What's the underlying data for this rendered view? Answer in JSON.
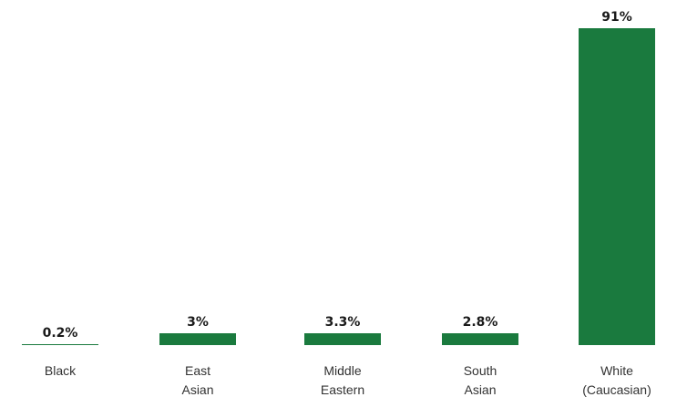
{
  "chart_data": {
    "type": "bar",
    "categories": [
      [
        "Black"
      ],
      [
        "East",
        "Asian"
      ],
      [
        "Middle",
        "Eastern"
      ],
      [
        "South",
        "Asian"
      ],
      [
        "White",
        "(Caucasian)"
      ]
    ],
    "values": [
      0.2,
      3,
      3.3,
      2.8,
      91
    ],
    "data_labels": [
      "0.2%",
      "3%",
      "3.3%",
      "2.8%",
      "91%"
    ],
    "unit": "%",
    "title": "",
    "xlabel": "",
    "ylabel": "",
    "ylim": [
      0,
      91
    ],
    "grid": false,
    "legend": "none",
    "bar_color": "#1a7a3e"
  }
}
